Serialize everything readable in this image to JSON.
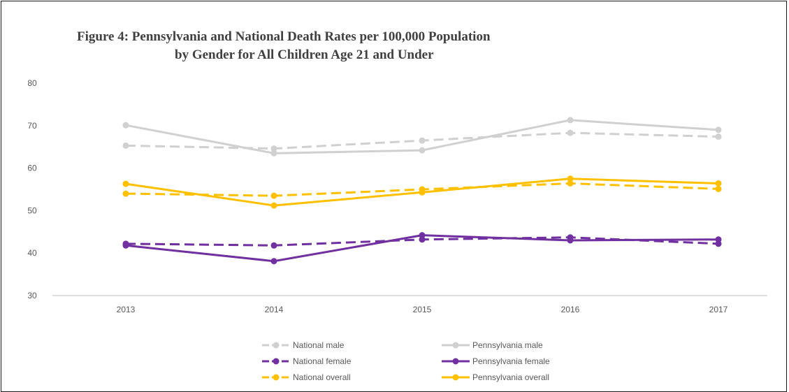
{
  "chart_data": {
    "type": "line",
    "title": "Figure 4:  Pennsylvania and National Death Rates per 100,000 Population",
    "subtitle": "by Gender for All Children Age 21 and Under",
    "xlabel": "",
    "ylabel": "",
    "categories": [
      "2013",
      "2014",
      "2015",
      "2016",
      "2017"
    ],
    "ylim": [
      30,
      80
    ],
    "yticks": [
      30,
      40,
      50,
      60,
      70,
      80
    ],
    "grid": false,
    "legend_position": "bottom",
    "series": [
      {
        "name": "National male",
        "values": [
          65.3,
          64.6,
          66.5,
          68.3,
          67.4
        ],
        "color": "#d0d0d0",
        "dashed": true
      },
      {
        "name": "Pennsylvania male",
        "values": [
          70.1,
          63.5,
          64.2,
          71.3,
          69.0
        ],
        "color": "#d0d0d0",
        "dashed": false
      },
      {
        "name": "National female",
        "values": [
          42.2,
          41.8,
          43.2,
          43.7,
          42.2
        ],
        "color": "#7030a0",
        "dashed": true
      },
      {
        "name": "Pennsylvania female",
        "values": [
          41.8,
          38.1,
          44.2,
          43.0,
          43.2
        ],
        "color": "#7030a0",
        "dashed": false
      },
      {
        "name": "National overall",
        "values": [
          54.0,
          53.5,
          55.0,
          56.4,
          55.1
        ],
        "color": "#ffc000",
        "dashed": true
      },
      {
        "name": "Pennsylvania overall",
        "values": [
          56.3,
          51.2,
          54.3,
          57.5,
          56.4
        ],
        "color": "#ffc000",
        "dashed": false
      }
    ]
  }
}
